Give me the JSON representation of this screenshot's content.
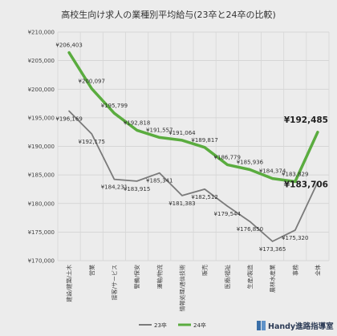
{
  "chart_data": {
    "type": "line",
    "title": "高校生向け求人の業種別平均給与(23卒と24卒の比較)",
    "categories": [
      "建設/建築/土木",
      "営業",
      "接客/サービス",
      "警備/保安",
      "運輸/物流",
      "情報処理/通信技術",
      "販売",
      "医療/福祉",
      "生産/製造",
      "農林水産業",
      "事務",
      "全体"
    ],
    "ylim": [
      170000,
      210000
    ],
    "yticks": [
      170000,
      175000,
      180000,
      185000,
      190000,
      195000,
      200000,
      205000,
      210000
    ],
    "ytick_labels": [
      "¥170,000",
      "¥175,000",
      "¥180,000",
      "¥185,000",
      "¥190,000",
      "¥195,000",
      "¥200,000",
      "¥205,000",
      "¥210,000"
    ],
    "grid": true,
    "legend_position": "bottom",
    "series": [
      {
        "name": "23卒",
        "color": "#7a7a7a",
        "values": [
          196169,
          192175,
          184231,
          183915,
          185341,
          181383,
          182512,
          179544,
          176850,
          173365,
          175320,
          183706
        ],
        "labels": [
          "¥196,169",
          "¥192,175",
          "¥184,231",
          "¥183,915",
          "¥185,341",
          "¥181,383",
          "¥182,512",
          "¥179,544",
          "¥176,850",
          "¥173,365",
          "¥175,320",
          "¥183,706"
        ]
      },
      {
        "name": "24卒",
        "color": "#5aac3f",
        "values": [
          206403,
          200097,
          195799,
          192818,
          191557,
          191064,
          189817,
          186779,
          185936,
          184374,
          183829,
          192485
        ],
        "labels": [
          "¥206,403",
          "¥200,097",
          "¥195,799",
          "¥192,818",
          "¥191,557",
          "¥191,064",
          "¥189,817",
          "¥186,779",
          "¥185,936",
          "¥184,374",
          "¥183,829",
          "¥192,485"
        ]
      }
    ]
  },
  "brand": {
    "name": "Handy進路指導室",
    "icon": "book-icon"
  }
}
